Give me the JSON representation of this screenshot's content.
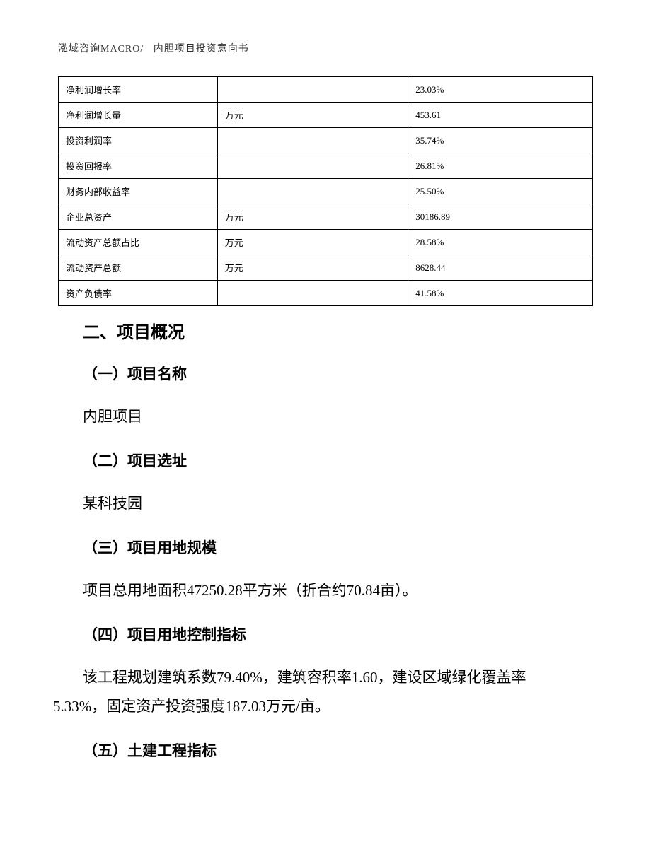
{
  "header": {
    "company": "泓域咨询MACRO/",
    "doc_title": "内胆项目投资意向书"
  },
  "table": {
    "rows": [
      {
        "label": "净利润增长率",
        "unit": "",
        "value": "23.03%"
      },
      {
        "label": "净利润增长量",
        "unit": "万元",
        "value": "453.61"
      },
      {
        "label": "投资利润率",
        "unit": "",
        "value": "35.74%"
      },
      {
        "label": "投资回报率",
        "unit": "",
        "value": "26.81%"
      },
      {
        "label": "财务内部收益率",
        "unit": "",
        "value": "25.50%"
      },
      {
        "label": "企业总资产",
        "unit": "万元",
        "value": "30186.89"
      },
      {
        "label": "流动资产总额占比",
        "unit": "万元",
        "value": "28.58%"
      },
      {
        "label": "流动资产总额",
        "unit": "万元",
        "value": "8628.44"
      },
      {
        "label": "资产负债率",
        "unit": "",
        "value": "41.58%"
      }
    ]
  },
  "sections": {
    "main_title": "二、项目概况",
    "sub1_title": "（一）项目名称",
    "sub1_text": "内胆项目",
    "sub2_title": "（二）项目选址",
    "sub2_text": "某科技园",
    "sub3_title": "（三）项目用地规模",
    "sub3_text": "项目总用地面积47250.28平方米（折合约70.84亩）。",
    "sub4_title": "（四）项目用地控制指标",
    "sub4_text": "该工程规划建筑系数79.40%，建筑容积率1.60，建设区域绿化覆盖率5.33%，固定资产投资强度187.03万元/亩。",
    "sub5_title": "（五）土建工程指标"
  }
}
